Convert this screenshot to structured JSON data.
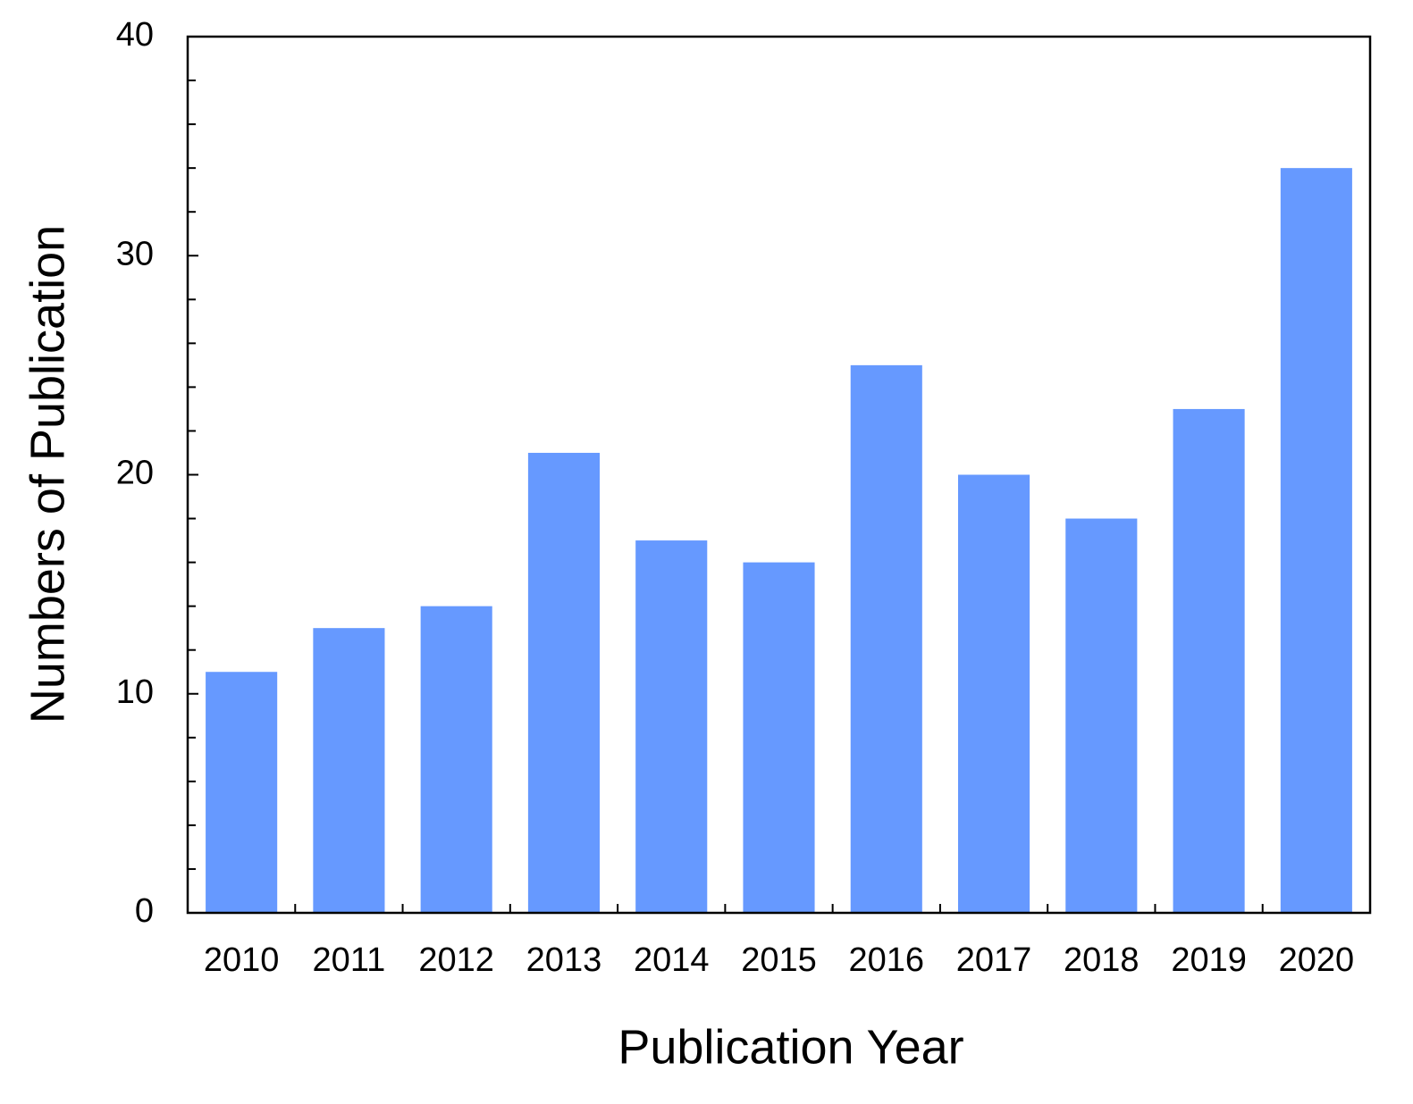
{
  "chart_data": {
    "type": "bar",
    "x_label": "Publication Year",
    "y_label": "Numbers of Publication",
    "categories": [
      "2010",
      "2011",
      "2012",
      "2013",
      "2014",
      "2015",
      "2016",
      "2017",
      "2018",
      "2019",
      "2020"
    ],
    "values": [
      11,
      13,
      14,
      21,
      17,
      16,
      25,
      20,
      18,
      23,
      34
    ],
    "color": "#6699ff",
    "ylim": [
      0,
      40
    ],
    "yticks": [
      0,
      10,
      20,
      30,
      40
    ],
    "yticks_minor": [
      2,
      4,
      6,
      8,
      12,
      14,
      16,
      18,
      22,
      24,
      26,
      28,
      32,
      34,
      36,
      38
    ],
    "grid": false
  }
}
